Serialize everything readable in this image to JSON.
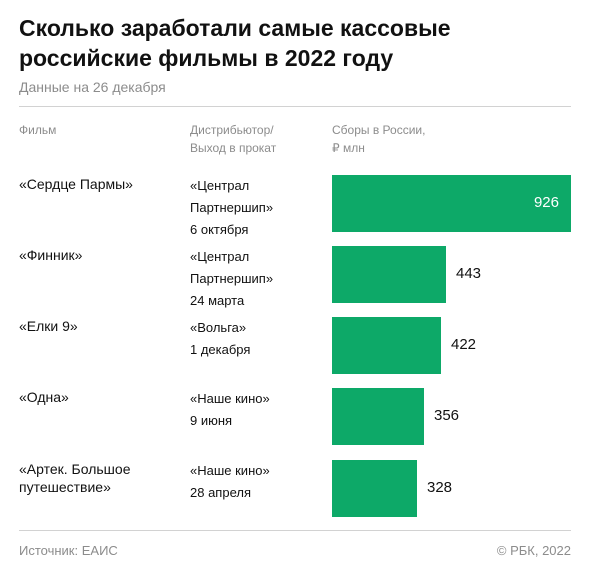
{
  "header": {
    "title": "Сколько заработали самые кассовые российские фильмы в 2022 году",
    "subtitle": "Данные на 26 декабря"
  },
  "columns": {
    "film": "Фильм",
    "distributor_line1": "Дистрибьютор/",
    "distributor_line2": "Выход в прокат",
    "box_office_line1": "Сборы в России,",
    "box_office_line2": "₽ млн"
  },
  "rows": [
    {
      "film_lines": [
        "«Сердце Пармы»"
      ],
      "distributor_lines": [
        "«Централ",
        "Партнершип»"
      ],
      "release": "6 октября",
      "value_label": "926"
    },
    {
      "film_lines": [
        "«Финник»"
      ],
      "distributor_lines": [
        "«Централ",
        "Партнершип»"
      ],
      "release": "24 марта",
      "value_label": "443"
    },
    {
      "film_lines": [
        "«Елки 9»"
      ],
      "distributor_lines": [
        "«Вольга»"
      ],
      "release": "1 декабря",
      "value_label": "422"
    },
    {
      "film_lines": [
        "«Одна»"
      ],
      "distributor_lines": [
        "«Наше кино»"
      ],
      "release": "9 июня",
      "value_label": "356"
    },
    {
      "film_lines": [
        "«Артек. Большое",
        "путешествие»"
      ],
      "distributor_lines": [
        "«Наше кино»"
      ],
      "release": "28 апреля",
      "value_label": "328"
    }
  ],
  "footer": {
    "source": "Источник: ЕАИС",
    "copyright": "© РБК, 2022"
  },
  "colors": {
    "bar": "#0da968",
    "muted_text": "#8c8c8c"
  },
  "chart_data": {
    "type": "bar",
    "orientation": "horizontal",
    "title": "Сколько заработали самые кассовые российские фильмы в 2022 году",
    "subtitle": "Данные на 26 декабря",
    "xlabel": "Сборы в России, ₽ млн",
    "ylabel": "",
    "categories": [
      "«Сердце Пармы»",
      "«Финник»",
      "«Елки 9»",
      "«Одна»",
      "«Артек. Большое путешествие»"
    ],
    "values": [
      926,
      443,
      422,
      356,
      328
    ],
    "xlim": [
      0,
      926
    ],
    "grid": false,
    "legend": "none"
  }
}
